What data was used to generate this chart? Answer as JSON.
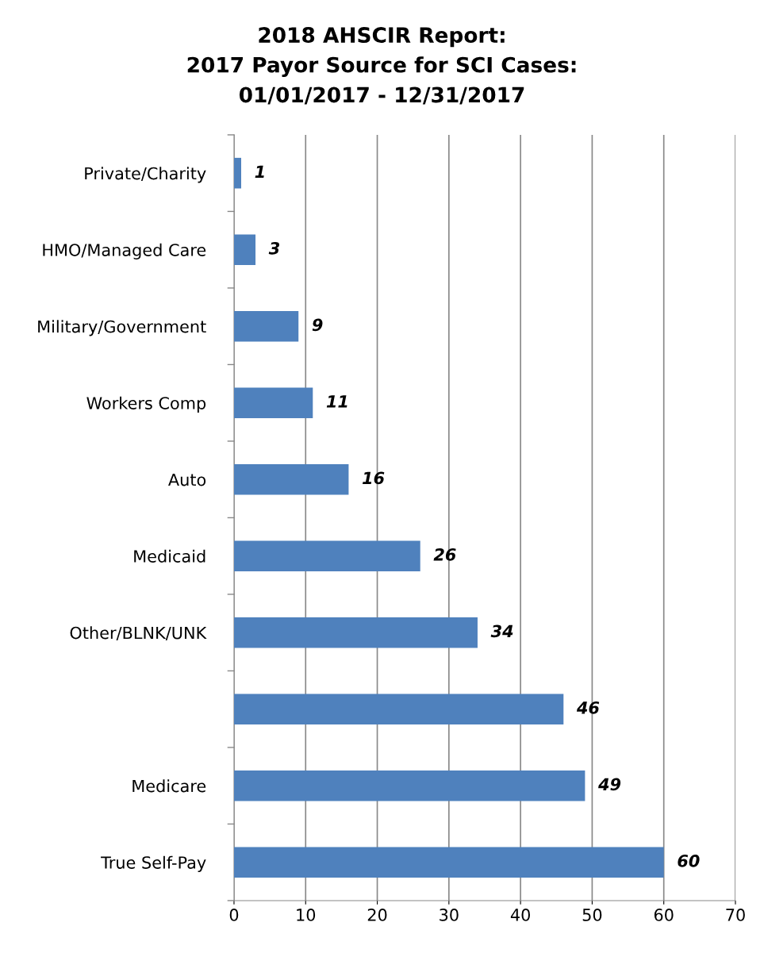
{
  "chart_data": {
    "type": "bar",
    "orientation": "horizontal",
    "title": "2018 AHSCIR Report:\n2017 Payor Source for SCI Cases:\n01/01/2017 - 12/31/2017",
    "categories": [
      "Private/Charity",
      "HMO/Managed Care",
      "Military/Government",
      "Workers Comp",
      "Auto",
      "Medicaid",
      "Other/BLNK/UNK",
      null,
      "Medicare",
      "True Self-Pay"
    ],
    "values": [
      1,
      3,
      9,
      11,
      16,
      26,
      34,
      46,
      49,
      60
    ],
    "color": "#4f81bd",
    "xlim": [
      0,
      70
    ],
    "xticks": [
      0,
      10,
      20,
      30,
      40,
      50,
      60,
      70
    ],
    "grid": "x",
    "data_labels": true,
    "legend": false
  }
}
